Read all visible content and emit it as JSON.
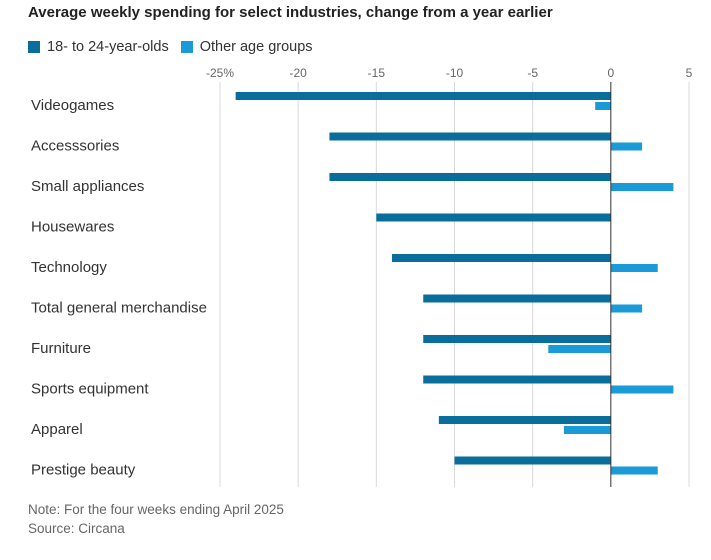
{
  "title": "Average weekly spending for select industries, change from a year earlier",
  "legend": [
    {
      "label": "18- to 24-year-olds",
      "color": "#0a6e9c"
    },
    {
      "label": "Other age groups",
      "color": "#1a9ad6"
    }
  ],
  "chart_data": {
    "type": "bar",
    "orientation": "horizontal",
    "title": "Average weekly spending for select industries, change from a year earlier",
    "xlabel": "",
    "ylabel": "",
    "xlim": [
      -25,
      5
    ],
    "x_ticks": [
      -25,
      -20,
      -15,
      -10,
      -5,
      0,
      5
    ],
    "x_tick_labels": [
      "-25%",
      "-20",
      "-15",
      "-10",
      "-5",
      "0",
      "5"
    ],
    "grid": "vertical",
    "legend_position": "top-left",
    "categories": [
      "Videogames",
      "Accesssories",
      "Small appliances",
      "Housewares",
      "Technology",
      "Total general merchandise",
      "Furniture",
      "Sports equipment",
      "Apparel",
      "Prestige beauty"
    ],
    "series": [
      {
        "name": "18- to 24-year-olds",
        "color": "#0a6e9c",
        "values": [
          -24,
          -18,
          -18,
          -15,
          -14,
          -12,
          -12,
          -12,
          -11,
          -10
        ]
      },
      {
        "name": "Other age groups",
        "color": "#1a9ad6",
        "values": [
          -1,
          2,
          4,
          null,
          3,
          2,
          -4,
          4,
          -3,
          3
        ]
      }
    ]
  },
  "footer": {
    "note": "Note: For the four weeks ending April 2025",
    "source": "Source: Circana"
  }
}
